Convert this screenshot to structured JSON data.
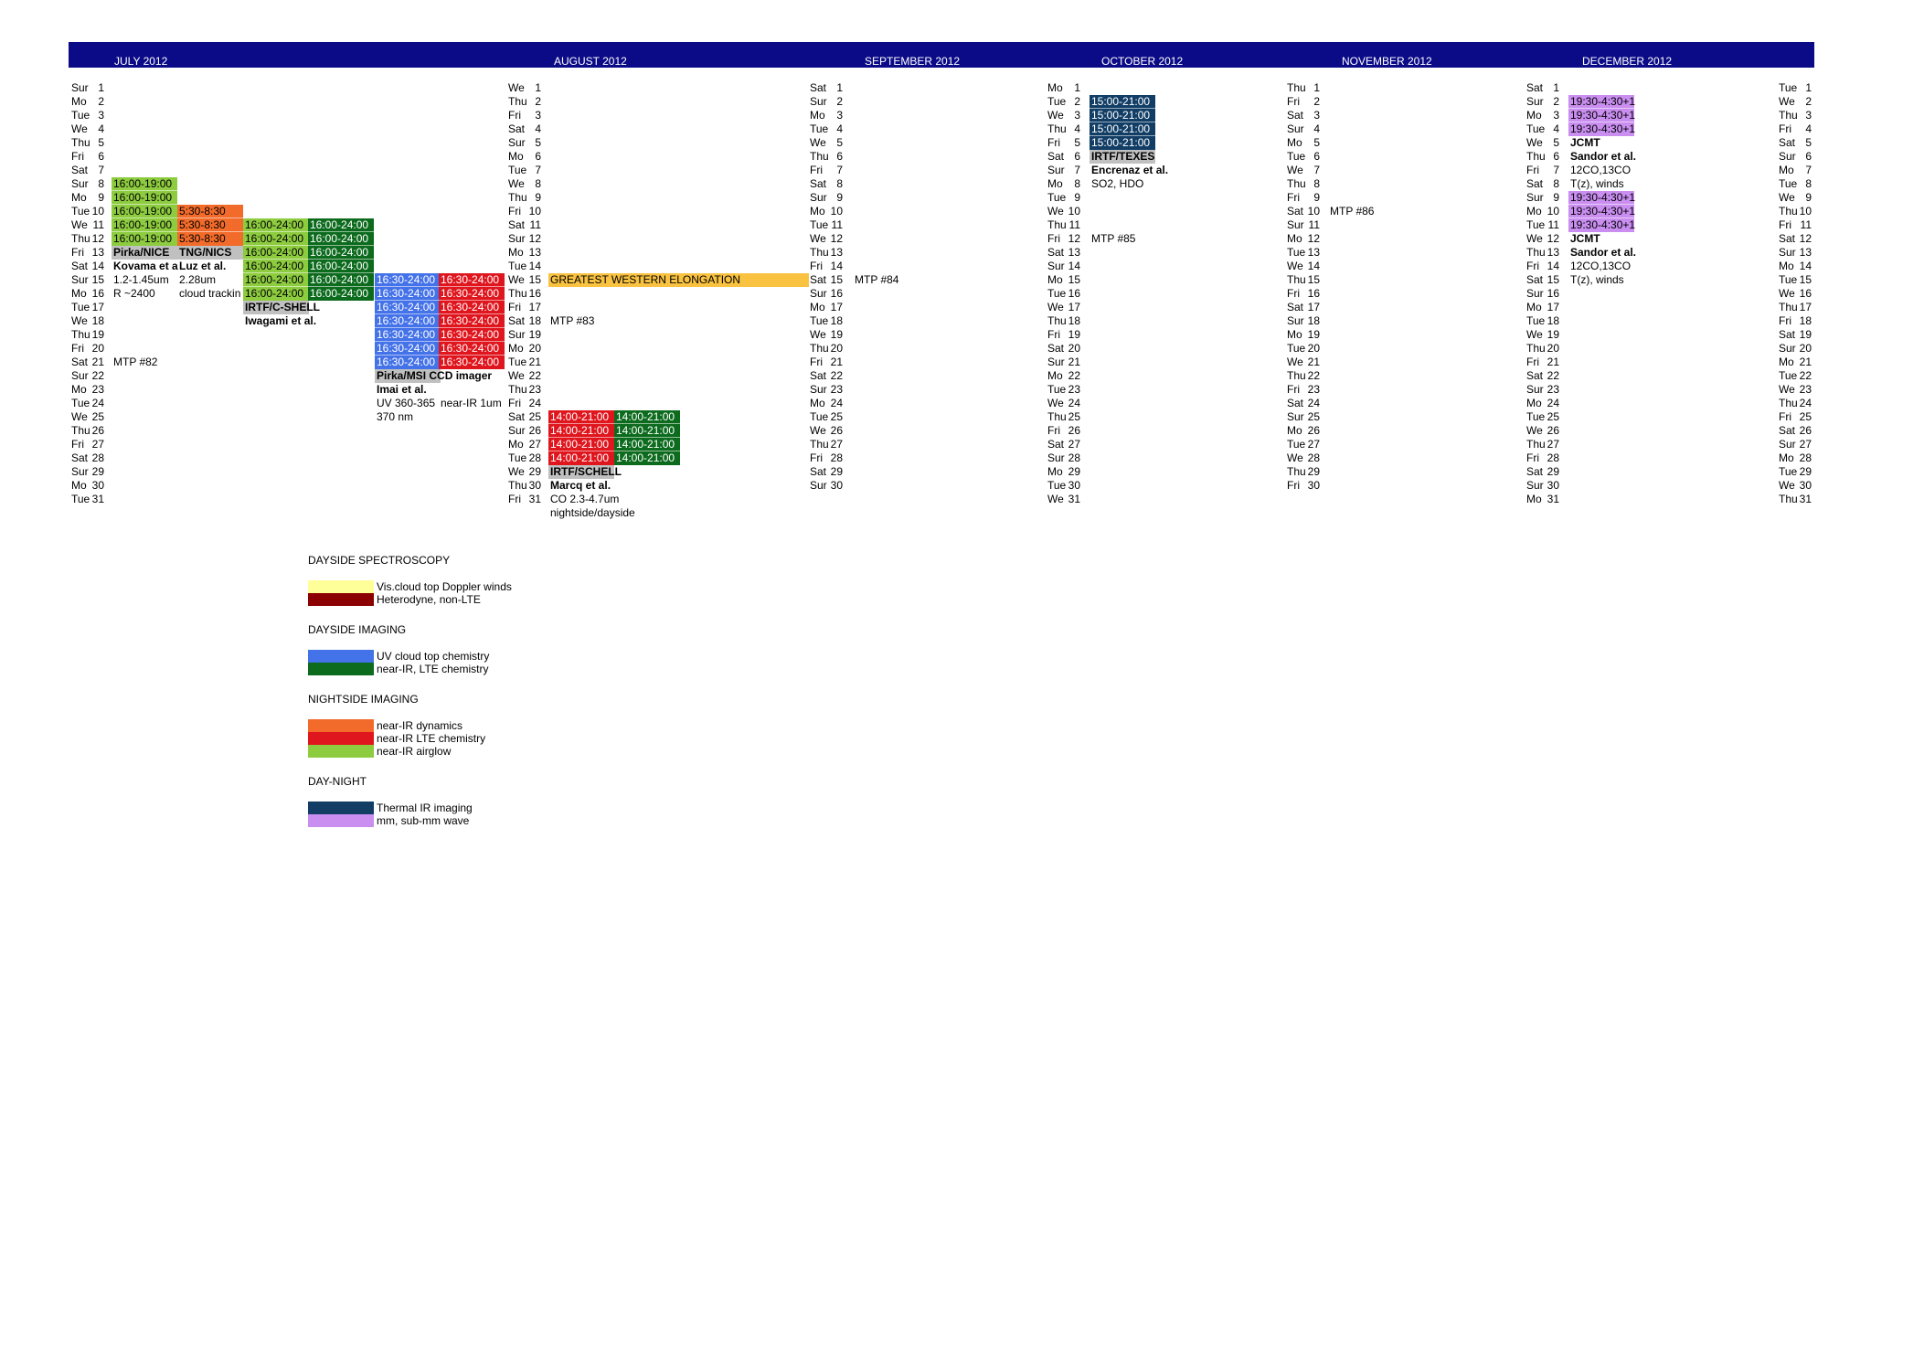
{
  "colors": {
    "header": "#0b0b87",
    "yellow": "#ffff99",
    "darkred": "#8b0000",
    "blue": "#4472e8",
    "darkgreen": "#0d6b1e",
    "orange": "#f26b2a",
    "red": "#e0161e",
    "lightgreen": "#8dcb3f",
    "navy": "#123e66",
    "violet": "#c98ef0",
    "gray": "#c0c0c0",
    "gold": "#f9c240"
  },
  "months": [
    {
      "label": "JULY 2012",
      "x": 125,
      "days": [
        [
          "Sur",
          "1"
        ],
        [
          "Mo",
          "2"
        ],
        [
          "Tue",
          "3"
        ],
        [
          "We",
          "4"
        ],
        [
          "Thu",
          "5"
        ],
        [
          "Fri",
          "6"
        ],
        [
          "Sat",
          "7"
        ],
        [
          "Sur",
          "8"
        ],
        [
          "Mo",
          "9"
        ],
        [
          "Tue",
          "10"
        ],
        [
          "We",
          "11"
        ],
        [
          "Thu",
          "12"
        ],
        [
          "Fri",
          "13"
        ],
        [
          "Sat",
          "14"
        ],
        [
          "Sur",
          "15"
        ],
        [
          "Mo",
          "16"
        ],
        [
          "Tue",
          "17"
        ],
        [
          "We",
          "18"
        ],
        [
          "Thu",
          "19"
        ],
        [
          "Fri",
          "20"
        ],
        [
          "Sat",
          "21"
        ],
        [
          "Sur",
          "22"
        ],
        [
          "Mo",
          "23"
        ],
        [
          "Tue",
          "24"
        ],
        [
          "We",
          "25"
        ],
        [
          "Thu",
          "26"
        ],
        [
          "Fri",
          "27"
        ],
        [
          "Sat",
          "28"
        ],
        [
          "Sur",
          "29"
        ],
        [
          "Mo",
          "30"
        ],
        [
          "Tue",
          "31"
        ]
      ]
    },
    {
      "label": "AUGUST 2012",
      "x": 606,
      "days": [
        [
          "We",
          "1"
        ],
        [
          "Thu",
          "2"
        ],
        [
          "Fri",
          "3"
        ],
        [
          "Sat",
          "4"
        ],
        [
          "Sur",
          "5"
        ],
        [
          "Mo",
          "6"
        ],
        [
          "Tue",
          "7"
        ],
        [
          "We",
          "8"
        ],
        [
          "Thu",
          "9"
        ],
        [
          "Fri",
          "10"
        ],
        [
          "Sat",
          "11"
        ],
        [
          "Sur",
          "12"
        ],
        [
          "Mo",
          "13"
        ],
        [
          "Tue",
          "14"
        ],
        [
          "We",
          "15"
        ],
        [
          "Thu",
          "16"
        ],
        [
          "Fri",
          "17"
        ],
        [
          "Sat",
          "18"
        ],
        [
          "Sur",
          "19"
        ],
        [
          "Mo",
          "20"
        ],
        [
          "Tue",
          "21"
        ],
        [
          "We",
          "22"
        ],
        [
          "Thu",
          "23"
        ],
        [
          "Fri",
          "24"
        ],
        [
          "Sat",
          "25"
        ],
        [
          "Sur",
          "26"
        ],
        [
          "Mo",
          "27"
        ],
        [
          "Tue",
          "28"
        ],
        [
          "We",
          "29"
        ],
        [
          "Thu",
          "30"
        ],
        [
          "Fri",
          "31"
        ]
      ]
    },
    {
      "label": "SEPTEMBER 2012",
      "x": 946,
      "days": [
        [
          "Sat",
          "1"
        ],
        [
          "Sur",
          "2"
        ],
        [
          "Mo",
          "3"
        ],
        [
          "Tue",
          "4"
        ],
        [
          "We",
          "5"
        ],
        [
          "Thu",
          "6"
        ],
        [
          "Fri",
          "7"
        ],
        [
          "Sat",
          "8"
        ],
        [
          "Sur",
          "9"
        ],
        [
          "Mo",
          "10"
        ],
        [
          "Tue",
          "11"
        ],
        [
          "We",
          "12"
        ],
        [
          "Thu",
          "13"
        ],
        [
          "Fri",
          "14"
        ],
        [
          "Sat",
          "15"
        ],
        [
          "Sur",
          "16"
        ],
        [
          "Mo",
          "17"
        ],
        [
          "Tue",
          "18"
        ],
        [
          "We",
          "19"
        ],
        [
          "Thu",
          "20"
        ],
        [
          "Fri",
          "21"
        ],
        [
          "Sat",
          "22"
        ],
        [
          "Sur",
          "23"
        ],
        [
          "Mo",
          "24"
        ],
        [
          "Tue",
          "25"
        ],
        [
          "We",
          "26"
        ],
        [
          "Thu",
          "27"
        ],
        [
          "Fri",
          "28"
        ],
        [
          "Sat",
          "29"
        ],
        [
          "Sur",
          "30"
        ]
      ]
    },
    {
      "label": "OCTOBER 2012",
      "x": 1205,
      "days": [
        [
          "Mo",
          "1"
        ],
        [
          "Tue",
          "2"
        ],
        [
          "We",
          "3"
        ],
        [
          "Thu",
          "4"
        ],
        [
          "Fri",
          "5"
        ],
        [
          "Sat",
          "6"
        ],
        [
          "Sur",
          "7"
        ],
        [
          "Mo",
          "8"
        ],
        [
          "Tue",
          "9"
        ],
        [
          "We",
          "10"
        ],
        [
          "Thu",
          "11"
        ],
        [
          "Fri",
          "12"
        ],
        [
          "Sat",
          "13"
        ],
        [
          "Sur",
          "14"
        ],
        [
          "Mo",
          "15"
        ],
        [
          "Tue",
          "16"
        ],
        [
          "We",
          "17"
        ],
        [
          "Thu",
          "18"
        ],
        [
          "Fri",
          "19"
        ],
        [
          "Sat",
          "20"
        ],
        [
          "Sur",
          "21"
        ],
        [
          "Mo",
          "22"
        ],
        [
          "Tue",
          "23"
        ],
        [
          "We",
          "24"
        ],
        [
          "Thu",
          "25"
        ],
        [
          "Fri",
          "26"
        ],
        [
          "Sat",
          "27"
        ],
        [
          "Sur",
          "28"
        ],
        [
          "Mo",
          "29"
        ],
        [
          "Tue",
          "30"
        ],
        [
          "We",
          "31"
        ]
      ]
    },
    {
      "label": "NOVEMBER 2012",
      "x": 1468,
      "days": [
        [
          "Thu",
          "1"
        ],
        [
          "Fri",
          "2"
        ],
        [
          "Sat",
          "3"
        ],
        [
          "Sur",
          "4"
        ],
        [
          "Mo",
          "5"
        ],
        [
          "Tue",
          "6"
        ],
        [
          "We",
          "7"
        ],
        [
          "Thu",
          "8"
        ],
        [
          "Fri",
          "9"
        ],
        [
          "Sat",
          "10"
        ],
        [
          "Sur",
          "11"
        ],
        [
          "Mo",
          "12"
        ],
        [
          "Tue",
          "13"
        ],
        [
          "We",
          "14"
        ],
        [
          "Thu",
          "15"
        ],
        [
          "Fri",
          "16"
        ],
        [
          "Sat",
          "17"
        ],
        [
          "Sur",
          "18"
        ],
        [
          "Mo",
          "19"
        ],
        [
          "Tue",
          "20"
        ],
        [
          "We",
          "21"
        ],
        [
          "Thu",
          "22"
        ],
        [
          "Fri",
          "23"
        ],
        [
          "Sat",
          "24"
        ],
        [
          "Sur",
          "25"
        ],
        [
          "Mo",
          "26"
        ],
        [
          "Tue",
          "27"
        ],
        [
          "We",
          "28"
        ],
        [
          "Thu",
          "29"
        ],
        [
          "Fri",
          "30"
        ]
      ]
    },
    {
      "label": "DECEMBER 2012",
      "x": 1731,
      "days": [
        [
          "Sat",
          "1"
        ],
        [
          "Sur",
          "2"
        ],
        [
          "Mo",
          "3"
        ],
        [
          "Tue",
          "4"
        ],
        [
          "We",
          "5"
        ],
        [
          "Thu",
          "6"
        ],
        [
          "Fri",
          "7"
        ],
        [
          "Sat",
          "8"
        ],
        [
          "Sur",
          "9"
        ],
        [
          "Mo",
          "10"
        ],
        [
          "Tue",
          "11"
        ],
        [
          "We",
          "12"
        ],
        [
          "Thu",
          "13"
        ],
        [
          "Fri",
          "14"
        ],
        [
          "Sat",
          "15"
        ],
        [
          "Sur",
          "16"
        ],
        [
          "Mo",
          "17"
        ],
        [
          "Tue",
          "18"
        ],
        [
          "We",
          "19"
        ],
        [
          "Thu",
          "20"
        ],
        [
          "Fri",
          "21"
        ],
        [
          "Sat",
          "22"
        ],
        [
          "Sur",
          "23"
        ],
        [
          "Mo",
          "24"
        ],
        [
          "Tue",
          "25"
        ],
        [
          "We",
          "26"
        ],
        [
          "Thu",
          "27"
        ],
        [
          "Fri",
          "28"
        ],
        [
          "Sat",
          "29"
        ],
        [
          "Sur",
          "30"
        ],
        [
          "Mo",
          "31"
        ]
      ]
    },
    {
      "label": "",
      "x": 2010,
      "days": [
        [
          "Tue",
          "1"
        ],
        [
          "We",
          "2"
        ],
        [
          "Thu",
          "3"
        ],
        [
          "Fri",
          "4"
        ],
        [
          "Sat",
          "5"
        ],
        [
          "Sur",
          "6"
        ],
        [
          "Mo",
          "7"
        ],
        [
          "Tue",
          "8"
        ],
        [
          "We",
          "9"
        ],
        [
          "Thu",
          "10"
        ],
        [
          "Fri",
          "11"
        ],
        [
          "Sat",
          "12"
        ],
        [
          "Sur",
          "13"
        ],
        [
          "Mo",
          "14"
        ],
        [
          "Tue",
          "15"
        ],
        [
          "We",
          "16"
        ],
        [
          "Thu",
          "17"
        ],
        [
          "Fri",
          "18"
        ],
        [
          "Sat",
          "19"
        ],
        [
          "Sur",
          "20"
        ],
        [
          "Mo",
          "21"
        ],
        [
          "Tue",
          "22"
        ],
        [
          "We",
          "23"
        ],
        [
          "Thu",
          "24"
        ],
        [
          "Fri",
          "25"
        ],
        [
          "Sat",
          "26"
        ],
        [
          "Sur",
          "27"
        ],
        [
          "Mo",
          "28"
        ],
        [
          "Tue",
          "29"
        ],
        [
          "We",
          "30"
        ],
        [
          "Thu",
          "31"
        ]
      ]
    }
  ],
  "observations": [
    {
      "col": 0,
      "row": 8,
      "span": 5,
      "text": "16:00-19:00",
      "fill": "lightgreen",
      "fg": "#000",
      "extra": []
    },
    {
      "col": 0,
      "row": 13,
      "span": 1,
      "text": "Pirka/NICE",
      "fill": "gray",
      "fg": "#000",
      "bold": true
    },
    {
      "col": 0,
      "row": 14,
      "span": 1,
      "text": "Kovama et a",
      "fill": "",
      "fg": "#000",
      "bold": true
    },
    {
      "col": 0,
      "row": 15,
      "span": 1,
      "text": "1.2-1.45um",
      "fill": "",
      "fg": "#000"
    },
    {
      "col": 0,
      "row": 16,
      "span": 1,
      "text": "R ~2400",
      "fill": "",
      "fg": "#000"
    },
    {
      "col": 0,
      "row": 21,
      "span": 1,
      "text": "MTP #82",
      "fill": "",
      "fg": "#000"
    },
    {
      "col": 1,
      "row": 10,
      "span": 3,
      "text": "5:30-8:30",
      "fill": "orange",
      "fg": "#000"
    },
    {
      "col": 1,
      "row": 13,
      "span": 1,
      "text": "TNG/NICS",
      "fill": "gray",
      "fg": "#000",
      "bold": true
    },
    {
      "col": 1,
      "row": 14,
      "span": 1,
      "text": "Luz et al.",
      "fill": "",
      "fg": "#000",
      "bold": true
    },
    {
      "col": 1,
      "row": 15,
      "span": 1,
      "text": "2.28um",
      "fill": "",
      "fg": "#000"
    },
    {
      "col": 1,
      "row": 16,
      "span": 1,
      "text": "cloud trackin",
      "fill": "",
      "fg": "#000"
    },
    {
      "col": 2,
      "row": 11,
      "span": 6,
      "text": "16:00-24:00",
      "fill": "lightgreen",
      "fg": "#000"
    },
    {
      "col": 2,
      "row": 17,
      "span": 1,
      "text": "IRTF/C-SHELL",
      "fill": "gray",
      "fg": "#000",
      "bold": true
    },
    {
      "col": 2,
      "row": 18,
      "span": 1,
      "text": "Iwagami et al.",
      "fill": "",
      "fg": "#000",
      "bold": true
    },
    {
      "col": 3,
      "row": 11,
      "span": 6,
      "text": "16:00-24:00",
      "fill": "darkgreen",
      "fg": "#fff"
    },
    {
      "col": 4,
      "row": 15,
      "span": 7,
      "text": "16:30-24:00",
      "fill": "blue",
      "fg": "#fff"
    },
    {
      "col": 4,
      "row": 22,
      "span": 1,
      "text": "Pirka/MSI CCD imager",
      "fill": "gray",
      "fg": "#000",
      "bold": true
    },
    {
      "col": 4,
      "row": 23,
      "span": 1,
      "text": "Imai et al.",
      "fill": "",
      "fg": "#000",
      "bold": true
    },
    {
      "col": 4,
      "row": 24,
      "span": 1,
      "text": "UV 360-365",
      "fill": "",
      "fg": "#000"
    },
    {
      "col": 4,
      "row": 25,
      "span": 1,
      "text": "370 nm",
      "fill": "",
      "fg": "#000"
    },
    {
      "col": 5,
      "row": 15,
      "span": 7,
      "text": "16:30-24:00",
      "fill": "red",
      "fg": "#fff"
    },
    {
      "col": 5,
      "row": 24,
      "span": 1,
      "text": "near-IR 1um",
      "fill": "",
      "fg": "#000"
    },
    {
      "col": 6,
      "row": 15,
      "span": 1,
      "text": "GREATEST WESTERN ELONGATION",
      "fill": "gold",
      "fg": "#000",
      "wide": 285
    },
    {
      "col": 6,
      "row": 18,
      "span": 1,
      "text": "MTP #83",
      "fill": "",
      "fg": "#000"
    },
    {
      "col": 6,
      "row": 25,
      "span": 4,
      "text": "14:00-21:00",
      "fill": "red",
      "fg": "#fff"
    },
    {
      "col": 6,
      "row": 29,
      "span": 1,
      "text": "IRTF/SCHELL",
      "fill": "gray",
      "fg": "#000",
      "bold": true
    },
    {
      "col": 6,
      "row": 30,
      "span": 1,
      "text": "Marcq et al.",
      "fill": "",
      "fg": "#000",
      "bold": true
    },
    {
      "col": 6,
      "row": 31,
      "span": 1,
      "text": "CO 2.3-4.7um",
      "fill": "",
      "fg": "#000"
    },
    {
      "col": 6,
      "row": 32,
      "span": 1,
      "text": "nightside/dayside",
      "fill": "",
      "fg": "#000"
    },
    {
      "col": 7,
      "row": 25,
      "span": 4,
      "text": "14:00-21:00",
      "fill": "darkgreen",
      "fg": "#fff"
    },
    {
      "col": 8,
      "row": 15,
      "span": 1,
      "text": "MTP #84",
      "fill": "",
      "fg": "#000"
    },
    {
      "col": 9,
      "row": 2,
      "span": 4,
      "text": "15:00-21:00",
      "fill": "navy",
      "fg": "#fff"
    },
    {
      "col": 9,
      "row": 6,
      "span": 1,
      "text": "IRTF/TEXES",
      "fill": "gray",
      "fg": "#000",
      "bold": true
    },
    {
      "col": 9,
      "row": 7,
      "span": 1,
      "text": "Encrenaz et al.",
      "fill": "",
      "fg": "#000",
      "bold": true
    },
    {
      "col": 9,
      "row": 8,
      "span": 1,
      "text": "SO2, HDO",
      "fill": "",
      "fg": "#000"
    },
    {
      "col": 9,
      "row": 12,
      "span": 1,
      "text": "MTP #85",
      "fill": "",
      "fg": "#000"
    },
    {
      "col": 10,
      "row": 10,
      "span": 1,
      "text": "MTP #86",
      "fill": "",
      "fg": "#000"
    },
    {
      "col": 11,
      "row": 2,
      "span": 3,
      "text": "19:30-4:30+1",
      "fill": "violet",
      "fg": "#000"
    },
    {
      "col": 11,
      "row": 5,
      "span": 1,
      "text": "JCMT",
      "fill": "",
      "fg": "#000",
      "bold": true
    },
    {
      "col": 11,
      "row": 6,
      "span": 1,
      "text": "Sandor et al.",
      "fill": "",
      "fg": "#000",
      "bold": true
    },
    {
      "col": 11,
      "row": 7,
      "span": 1,
      "text": "12CO,13CO",
      "fill": "",
      "fg": "#000"
    },
    {
      "col": 11,
      "row": 8,
      "span": 1,
      "text": "T(z), winds",
      "fill": "",
      "fg": "#000"
    },
    {
      "col": 11,
      "row": 9,
      "span": 3,
      "text": "19:30-4:30+1",
      "fill": "violet",
      "fg": "#000"
    },
    {
      "col": 11,
      "row": 12,
      "span": 1,
      "text": "JCMT",
      "fill": "",
      "fg": "#000",
      "bold": true
    },
    {
      "col": 11,
      "row": 13,
      "span": 1,
      "text": "Sandor et al.",
      "fill": "",
      "fg": "#000",
      "bold": true
    },
    {
      "col": 11,
      "row": 14,
      "span": 1,
      "text": "12CO,13CO",
      "fill": "",
      "fg": "#000"
    },
    {
      "col": 11,
      "row": 15,
      "span": 1,
      "text": "T(z), winds",
      "fill": "",
      "fg": "#000"
    }
  ],
  "legend": [
    {
      "heading": "DAYSIDE SPECTROSCOPY",
      "items": [
        {
          "fill": "yellow",
          "label": "Vis.cloud top Doppler winds"
        },
        {
          "fill": "darkred",
          "label": "Heterodyne, non-LTE"
        }
      ]
    },
    {
      "heading": "DAYSIDE IMAGING",
      "items": [
        {
          "fill": "blue",
          "label": "UV cloud top chemistry"
        },
        {
          "fill": "darkgreen",
          "label": "near-IR, LTE chemistry"
        }
      ]
    },
    {
      "heading": "NIGHTSIDE IMAGING",
      "items": [
        {
          "fill": "orange",
          "label": "near-IR dynamics"
        },
        {
          "fill": "red",
          "label": "near-IR LTE chemistry"
        },
        {
          "fill": "lightgreen",
          "label": "near-IR airglow"
        }
      ]
    },
    {
      "heading": "DAY-NIGHT",
      "items": [
        {
          "fill": "navy",
          "label": "Thermal IR imaging"
        },
        {
          "fill": "violet",
          "label": "mm, sub-mm wave"
        }
      ]
    }
  ]
}
